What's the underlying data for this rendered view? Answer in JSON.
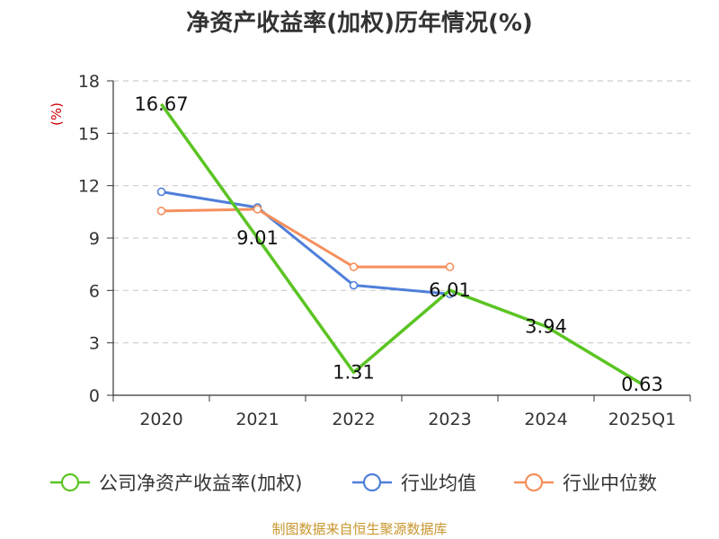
{
  "chart_data": {
    "type": "line",
    "title": "净资产收益率(加权)历年情况(%)",
    "ylabel": "(%)",
    "categories": [
      "2020",
      "2021",
      "2022",
      "2023",
      "2024",
      "2025Q1"
    ],
    "y_ticks": [
      "0",
      "3",
      "6",
      "9",
      "12",
      "15",
      "18"
    ],
    "ylim": [
      0,
      18
    ],
    "grid": true,
    "legend_position": "bottom",
    "series": [
      {
        "name": "公司净资产收益率(加权)",
        "color": "#5bc423",
        "values": [
          16.67,
          9.01,
          1.31,
          6.01,
          3.94,
          0.63
        ],
        "labels": [
          "16.67",
          "9.01",
          "1.31",
          "6.01",
          "3.94",
          "0.63"
        ]
      },
      {
        "name": "行业均值",
        "color": "#4f7fd9",
        "values": [
          11.65,
          10.75,
          6.3,
          5.8,
          null,
          null
        ]
      },
      {
        "name": "行业中位数",
        "color": "#f58f5d",
        "values": [
          10.55,
          10.65,
          7.35,
          7.35,
          null,
          null
        ]
      }
    ],
    "source": "制图数据来自恒生聚源数据库"
  }
}
